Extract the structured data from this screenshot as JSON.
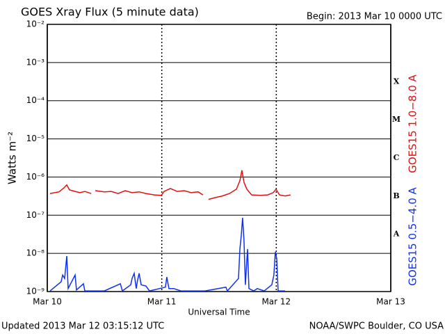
{
  "chart_data": {
    "type": "line",
    "title": "GOES Xray Flux (5 minute data)",
    "subtitle": "Begin:  2013 Mar 10 0000 UTC",
    "x_label": "Universal Time",
    "y_label": "Watts m⁻²",
    "footer_left": "Updated 2013 Mar 12 03:15:12 UTC",
    "footer_right": "NOAA/SWPC Boulder, CO USA",
    "log_scale": true,
    "grid": true,
    "xlim": [
      0,
      3
    ],
    "xticks": [
      {
        "value": 0,
        "label": "Mar 10"
      },
      {
        "value": 1,
        "label": "Mar 11"
      },
      {
        "value": 2,
        "label": "Mar 12"
      },
      {
        "value": 3,
        "label": "Mar 13"
      }
    ],
    "ylim": [
      1e-09,
      0.01
    ],
    "yticks": [
      {
        "value": 1e-09,
        "label": "10⁻⁹"
      },
      {
        "value": 1e-08,
        "label": "10⁻⁸"
      },
      {
        "value": 1e-07,
        "label": "10⁻⁷"
      },
      {
        "value": 1e-06,
        "label": "10⁻⁶"
      },
      {
        "value": 1e-05,
        "label": "10⁻⁵"
      },
      {
        "value": 0.0001,
        "label": "10⁻⁴"
      },
      {
        "value": 0.001,
        "label": "10⁻³"
      },
      {
        "value": 0.01,
        "label": "10⁻²"
      }
    ],
    "class_labels": [
      {
        "value": 1e-08,
        "label": "A"
      },
      {
        "value": 1e-07,
        "label": "B"
      },
      {
        "value": 1e-06,
        "label": "C"
      },
      {
        "value": 1e-05,
        "label": "M"
      },
      {
        "value": 0.0001,
        "label": "X"
      }
    ],
    "series": [
      {
        "name": "GOES15 1.0−8.0 A",
        "color": "#e01010",
        "x": [
          0.024,
          0.103,
          0.146,
          0.17,
          0.194,
          0.243,
          0.285,
          0.328,
          0.383,
          0.4,
          0.419,
          0.498,
          0.559,
          0.619,
          0.68,
          0.741,
          0.802,
          0.862,
          0.935,
          0.996,
          1.02,
          1.075,
          1.135,
          1.196,
          1.257,
          1.317,
          1.36,
          1.38,
          1.409,
          1.469,
          1.53,
          1.591,
          1.652,
          1.682,
          1.7,
          1.718,
          1.743,
          1.785,
          1.864,
          1.925,
          1.973,
          1.998,
          2.028,
          2.077,
          2.125
        ],
        "values": [
          3.7e-07,
          4.1e-07,
          5.2e-07,
          6.2e-07,
          4.6e-07,
          4.2e-07,
          3.9e-07,
          4.2e-07,
          3.7e-07,
          null,
          4.4e-07,
          4.1e-07,
          4.2e-07,
          3.7e-07,
          4.4e-07,
          3.9e-07,
          4.1e-07,
          3.7e-07,
          3.4e-07,
          3.3e-07,
          4.2e-07,
          5e-07,
          4.2e-07,
          4.4e-07,
          3.9e-07,
          4.1e-07,
          3.4e-07,
          null,
          2.6e-07,
          2.9e-07,
          3.2e-07,
          3.7e-07,
          4.8e-07,
          8e-07,
          1.5e-06,
          7.3e-07,
          4.8e-07,
          3.4e-07,
          3.3e-07,
          3.4e-07,
          3.9e-07,
          4.8e-07,
          3.4e-07,
          3.2e-07,
          3.4e-07
        ]
      },
      {
        "name": "GOES15 0.5−4.0 A",
        "color": "#1030f0",
        "x": [
          0.024,
          0.121,
          0.134,
          0.152,
          0.17,
          0.182,
          0.243,
          0.255,
          0.316,
          0.328,
          0.498,
          0.638,
          0.656,
          0.729,
          0.741,
          0.759,
          0.777,
          0.789,
          0.802,
          0.82,
          0.862,
          0.893,
          1.032,
          1.044,
          1.063,
          1.105,
          1.166,
          1.378,
          1.56,
          1.573,
          1.67,
          1.682,
          1.694,
          1.706,
          1.718,
          1.73,
          1.749,
          1.761,
          1.803,
          1.834,
          1.894,
          1.961,
          1.979,
          1.992,
          2.004,
          2.016,
          2.077
        ],
        "values": [
          1.04e-09,
          1.8e-09,
          2.7e-09,
          2.2e-09,
          8.5e-09,
          1.2e-09,
          2.7e-09,
          1.1e-09,
          1.6e-09,
          1.04e-09,
          1.04e-09,
          1.6e-09,
          1.04e-09,
          1.5e-09,
          2.2e-09,
          3e-09,
          1.2e-09,
          2e-09,
          3e-09,
          1.5e-09,
          1.4e-09,
          1.04e-09,
          1.3e-09,
          2.4e-09,
          1.2e-09,
          1.2e-09,
          1.04e-09,
          1.04e-09,
          1.3e-09,
          1.04e-09,
          2.2e-09,
          1.3e-08,
          2.8e-08,
          8.6e-08,
          2.2e-08,
          1.5e-09,
          1.3e-08,
          1.2e-09,
          1.04e-09,
          1.2e-09,
          1.04e-09,
          1.5e-09,
          2.7e-09,
          1.1e-08,
          7.2e-09,
          1.04e-09,
          1.04e-09
        ]
      }
    ]
  }
}
